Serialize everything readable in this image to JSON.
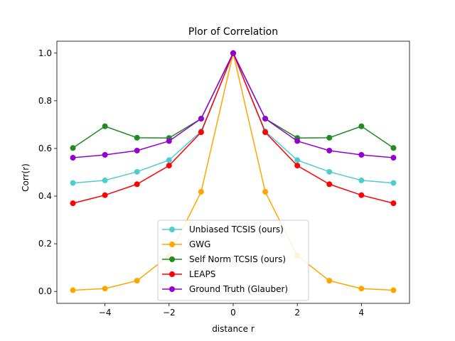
{
  "chart_data": {
    "type": "line",
    "title": "Plor of Correlation",
    "xlabel": "distance r",
    "ylabel": "Corr(r)",
    "xlim": [
      -5.5,
      5.5
    ],
    "ylim": [
      -0.05,
      1.05
    ],
    "xticks": [
      -4,
      -2,
      0,
      2,
      4
    ],
    "yticks": [
      0.0,
      0.2,
      0.4,
      0.6,
      0.8,
      1.0
    ],
    "xtick_labels": [
      "−4",
      "−2",
      "0",
      "2",
      "4"
    ],
    "ytick_labels": [
      "0.0",
      "0.2",
      "0.4",
      "0.6",
      "0.8",
      "1.0"
    ],
    "legend_position": "lower-center",
    "x": [
      -5,
      -4,
      -3,
      -2,
      -1,
      0,
      1,
      2,
      3,
      4,
      5
    ],
    "series": [
      {
        "name": "Unbiased TCSIS (ours)",
        "color": "#4ecdd0",
        "values": [
          0.455,
          0.466,
          0.502,
          0.551,
          0.672,
          1.0,
          0.672,
          0.551,
          0.502,
          0.466,
          0.455
        ]
      },
      {
        "name": "GWG",
        "color": "#ffa500",
        "values": [
          0.005,
          0.012,
          0.045,
          0.15,
          0.418,
          1.0,
          0.418,
          0.15,
          0.045,
          0.012,
          0.005
        ]
      },
      {
        "name": "Self Norm TCSIS (ours)",
        "color": "#228b22",
        "values": [
          0.602,
          0.693,
          0.645,
          0.644,
          0.725,
          1.0,
          0.725,
          0.644,
          0.645,
          0.693,
          0.602
        ]
      },
      {
        "name": "LEAPS",
        "color": "#ff0000",
        "values": [
          0.37,
          0.404,
          0.45,
          0.528,
          0.668,
          1.0,
          0.668,
          0.528,
          0.45,
          0.404,
          0.37
        ]
      },
      {
        "name": "Ground Truth (Glauber)",
        "color": "#9400d3",
        "values": [
          0.561,
          0.573,
          0.591,
          0.631,
          0.725,
          1.0,
          0.725,
          0.631,
          0.591,
          0.573,
          0.561
        ]
      }
    ]
  }
}
